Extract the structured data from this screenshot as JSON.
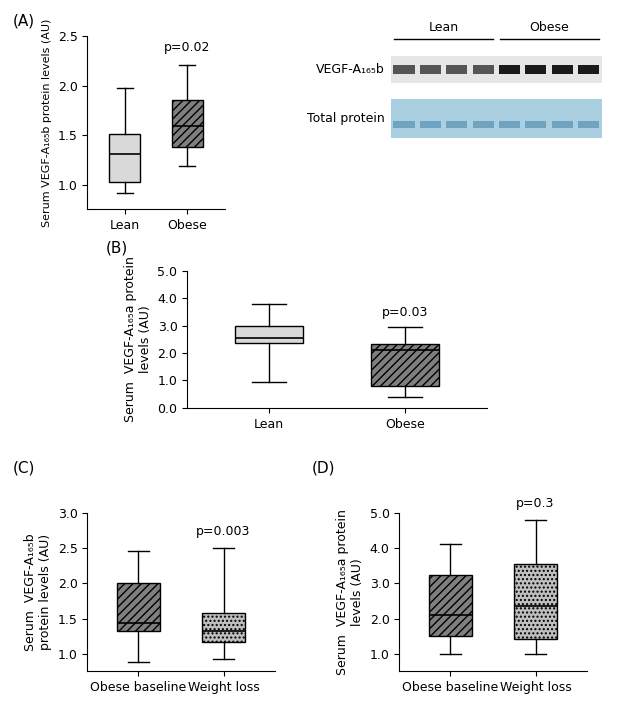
{
  "chart_data": [
    {
      "type": "box",
      "panel": "(A)",
      "categories": [
        "Lean",
        "Obese"
      ],
      "ylabel": "Serum VEGF-A₁₆₅b protein levels (AU)",
      "whislo": [
        0.92,
        1.19
      ],
      "q1": [
        1.03,
        1.38
      ],
      "median": [
        1.31,
        1.59
      ],
      "q3": [
        1.51,
        1.85
      ],
      "whishi": [
        1.98,
        2.21
      ],
      "colors": [
        "#d9d9d9",
        "#7f7f7f"
      ],
      "ylim": [
        0.75,
        2.5
      ],
      "yticks": [
        {
          "value": 1.0,
          "label": "1.0"
        },
        {
          "value": 1.5,
          "label": "1.5"
        },
        {
          "value": 2.0,
          "label": "2.0"
        },
        {
          "value": 2.5,
          "label": "2.5"
        }
      ],
      "annotations": [
        {
          "text": "p=0.02",
          "category": "Obese"
        }
      ]
    },
    {
      "type": "box",
      "panel": "(B)",
      "categories": [
        "Lean",
        "Obese"
      ],
      "ylabel": "Serum  VEGF-A₁₆₅a protein\nlevels (AU)",
      "whislo": [
        0.95,
        0.4
      ],
      "q1": [
        2.35,
        0.8
      ],
      "median": [
        2.55,
        2.1
      ],
      "q3": [
        3.0,
        2.32
      ],
      "whishi": [
        3.8,
        2.95
      ],
      "colors": [
        "#d9d9d9",
        "#7f7f7f"
      ],
      "ylim": [
        0,
        5
      ],
      "yticks": [
        {
          "value": 0,
          "label": "0.0"
        },
        {
          "value": 1,
          "label": "1.0"
        },
        {
          "value": 2,
          "label": "2.0"
        },
        {
          "value": 3,
          "label": "3.0"
        },
        {
          "value": 4,
          "label": "4.0"
        },
        {
          "value": 5,
          "label": "5.0"
        }
      ],
      "annotations": [
        {
          "text": "p=0.03",
          "category": "Obese"
        }
      ]
    },
    {
      "type": "box",
      "panel": "(C)",
      "categories": [
        "Obese baseline",
        "Weight loss"
      ],
      "ylabel": "Serum  VEGF-A₁₆₅b\nprotein levels (AU)",
      "whislo": [
        0.88,
        0.92
      ],
      "q1": [
        1.32,
        1.17
      ],
      "median": [
        1.43,
        1.33
      ],
      "q3": [
        2.0,
        1.58
      ],
      "whishi": [
        2.45,
        2.5
      ],
      "colors": [
        "#7f7f7f",
        "#bfbfbf"
      ],
      "ylim": [
        0.75,
        3.0
      ],
      "yticks": [
        {
          "value": 1.0,
          "label": "1.0"
        },
        {
          "value": 1.5,
          "label": "1.5"
        },
        {
          "value": 2.0,
          "label": "2.0"
        },
        {
          "value": 2.5,
          "label": "2.5"
        },
        {
          "value": 3.0,
          "label": "3.0"
        }
      ],
      "annotations": [
        {
          "text": "p=0.003",
          "category": "Weight loss"
        }
      ]
    },
    {
      "type": "box",
      "panel": "(D)",
      "categories": [
        "Obese baseline",
        "Weight loss"
      ],
      "ylabel": "Serum  VEGF-A₁₆₅a protein\nlevels (AU)",
      "whislo": [
        1.0,
        1.0
      ],
      "q1": [
        1.5,
        1.42
      ],
      "median": [
        2.1,
        2.35
      ],
      "q3": [
        3.22,
        3.55
      ],
      "whishi": [
        4.1,
        4.8
      ],
      "colors": [
        "#7f7f7f",
        "#bfbfbf"
      ],
      "ylim": [
        0.5,
        5.0
      ],
      "yticks": [
        {
          "value": 1.0,
          "label": "1.0"
        },
        {
          "value": 2.0,
          "label": "2.0"
        },
        {
          "value": 3.0,
          "label": "3.0"
        },
        {
          "value": 4.0,
          "label": "4.0"
        },
        {
          "value": 5.0,
          "label": "5.0"
        }
      ],
      "annotations": [
        {
          "text": "p=0.3",
          "category": "Weight loss"
        }
      ]
    }
  ],
  "blot": {
    "groups": [
      "Lean",
      "Obese"
    ],
    "lanes_per_group": 4,
    "rows": [
      "VEGF-A₁₆₅b",
      "Total protein"
    ]
  }
}
